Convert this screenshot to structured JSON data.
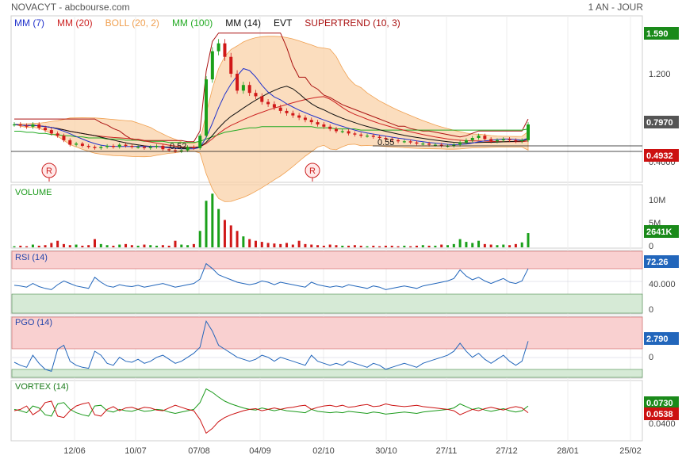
{
  "header": {
    "title": "NOVACYT - abcbourse.com",
    "period": "1 AN - JOUR"
  },
  "legend": [
    {
      "label": "MM (7)",
      "color": "#2233cc"
    },
    {
      "label": "MM (20)",
      "color": "#cc2222"
    },
    {
      "label": "BOLL (20, 2)",
      "color": "#f0a050"
    },
    {
      "label": "MM (100)",
      "color": "#22aa22"
    },
    {
      "label": "MM (14)",
      "color": "#111111"
    },
    {
      "label": "EVT",
      "color": "#111111"
    },
    {
      "label": "SUPERTREND (10, 3)",
      "color": "#aa1111"
    }
  ],
  "chart_data": {
    "type": "line",
    "x_ticks": [
      "12/06",
      "10/07",
      "07/08",
      "04/09",
      "02/10",
      "30/10",
      "27/11",
      "27/12",
      "28/01",
      "25/02"
    ],
    "price_panel": {
      "y_ticks": [
        "1.200",
        "0.4000"
      ],
      "price_badges": [
        {
          "value": "1.590",
          "color": "#1a8a1a"
        },
        {
          "value": "0.7970",
          "color": "#555555"
        },
        {
          "value": "0.4932",
          "color": "#cc1111"
        }
      ],
      "annotations": [
        "0.52",
        "0.55"
      ],
      "event_markers": [
        "R",
        "R"
      ],
      "close": [
        0.8,
        0.79,
        0.78,
        0.8,
        0.77,
        0.75,
        0.72,
        0.7,
        0.66,
        0.62,
        0.63,
        0.61,
        0.6,
        0.59,
        0.6,
        0.61,
        0.6,
        0.62,
        0.61,
        0.6,
        0.6,
        0.59,
        0.6,
        0.61,
        0.58,
        0.57,
        0.56,
        0.57,
        0.6,
        0.59,
        0.7,
        1.2,
        1.45,
        1.52,
        1.4,
        1.25,
        1.1,
        1.15,
        1.08,
        1.05,
        1.0,
        0.98,
        0.95,
        0.92,
        0.9,
        0.88,
        0.86,
        0.84,
        0.82,
        0.8,
        0.78,
        0.76,
        0.74,
        0.74,
        0.72,
        0.71,
        0.7,
        0.7,
        0.69,
        0.68,
        0.67,
        0.66,
        0.65,
        0.65,
        0.64,
        0.63,
        0.63,
        0.62,
        0.62,
        0.61,
        0.61,
        0.62,
        0.64,
        0.66,
        0.68,
        0.7,
        0.67,
        0.65,
        0.66,
        0.67,
        0.66,
        0.65,
        0.66,
        0.8
      ],
      "ma100": [
        0.74,
        0.74,
        0.73,
        0.73,
        0.72,
        0.72,
        0.71,
        0.71,
        0.7,
        0.7,
        0.69,
        0.69,
        0.68,
        0.68,
        0.68,
        0.67,
        0.67,
        0.67,
        0.66,
        0.66,
        0.66,
        0.65,
        0.65,
        0.65,
        0.65,
        0.64,
        0.64,
        0.64,
        0.64,
        0.64,
        0.65,
        0.67,
        0.69,
        0.71,
        0.73,
        0.74,
        0.75,
        0.76,
        0.77,
        0.77,
        0.78,
        0.78,
        0.78,
        0.78,
        0.78,
        0.78,
        0.78,
        0.78,
        0.78,
        0.77,
        0.77,
        0.77,
        0.76,
        0.76,
        0.76,
        0.76,
        0.75,
        0.75,
        0.75,
        0.75,
        0.75,
        0.75,
        0.75,
        0.75,
        0.75,
        0.75,
        0.75,
        0.75,
        0.75,
        0.75,
        0.75,
        0.75,
        0.75,
        0.75,
        0.75,
        0.75,
        0.75,
        0.75,
        0.75,
        0.75,
        0.75,
        0.75,
        0.75,
        0.76
      ],
      "ylim": [
        0.3,
        1.75
      ]
    },
    "volume_panel": {
      "label": "VOLUME",
      "y_ticks": [
        "10M",
        "5M",
        "0"
      ],
      "last_value": "2641K",
      "values": [
        0.2,
        0.3,
        0.2,
        0.5,
        0.3,
        0.4,
        0.8,
        1.2,
        0.6,
        0.4,
        0.5,
        0.3,
        0.4,
        1.5,
        0.6,
        0.4,
        0.3,
        0.5,
        0.6,
        0.4,
        0.3,
        0.5,
        0.4,
        0.3,
        0.4,
        0.3,
        1.2,
        0.5,
        0.4,
        0.6,
        3.0,
        8.5,
        9.8,
        7.0,
        5.0,
        4.0,
        3.0,
        2.0,
        1.5,
        1.2,
        1.0,
        0.8,
        0.7,
        0.6,
        0.8,
        0.5,
        1.2,
        0.6,
        0.5,
        0.4,
        0.3,
        0.5,
        0.4,
        0.3,
        0.3,
        0.4,
        0.3,
        0.2,
        0.3,
        0.2,
        0.3,
        0.3,
        0.2,
        0.3,
        0.2,
        0.3,
        0.4,
        0.3,
        0.3,
        0.5,
        0.4,
        0.6,
        1.5,
        1.0,
        0.8,
        1.2,
        0.6,
        0.5,
        0.4,
        0.5,
        0.4,
        0.6,
        0.9,
        2.6
      ],
      "ylim": [
        0,
        11
      ]
    },
    "rsi_panel": {
      "label": "RSI (14)",
      "y_ticks": [
        "40.000",
        "0"
      ],
      "last_value": "72.26",
      "values": [
        45,
        44,
        42,
        48,
        43,
        40,
        38,
        46,
        52,
        48,
        44,
        42,
        40,
        58,
        50,
        44,
        42,
        46,
        44,
        43,
        45,
        42,
        44,
        46,
        48,
        45,
        42,
        44,
        46,
        48,
        55,
        80,
        72,
        62,
        58,
        54,
        50,
        48,
        46,
        48,
        52,
        50,
        46,
        50,
        48,
        46,
        44,
        42,
        50,
        46,
        44,
        42,
        44,
        42,
        46,
        44,
        42,
        40,
        44,
        42,
        38,
        40,
        42,
        44,
        42,
        40,
        44,
        46,
        48,
        50,
        52,
        56,
        70,
        60,
        54,
        58,
        52,
        48,
        52,
        56,
        50,
        48,
        52,
        72
      ],
      "ylim": [
        0,
        100
      ]
    },
    "pgo_panel": {
      "label": "PGO (14)",
      "y_ticks": [
        "0"
      ],
      "last_value": "2.790",
      "values": [
        -0.5,
        -0.8,
        -1.0,
        0.2,
        -0.6,
        -1.2,
        -1.4,
        0.8,
        1.2,
        -0.4,
        -0.8,
        -1.0,
        -1.1,
        0.6,
        0.2,
        -0.6,
        -0.8,
        0.0,
        -0.4,
        -0.5,
        -0.2,
        -0.6,
        -0.4,
        0.0,
        0.2,
        -0.2,
        -0.6,
        -0.4,
        0.0,
        0.4,
        1.0,
        3.6,
        2.6,
        1.2,
        0.8,
        0.4,
        0.0,
        -0.2,
        -0.4,
        -0.2,
        0.2,
        0.0,
        -0.4,
        0.0,
        -0.2,
        -0.4,
        -0.6,
        -0.8,
        0.2,
        -0.4,
        -0.6,
        -0.8,
        -0.6,
        -0.8,
        -0.4,
        -0.6,
        -0.8,
        -1.0,
        -0.6,
        -0.8,
        -1.2,
        -1.0,
        -0.8,
        -0.6,
        -0.8,
        -1.0,
        -0.6,
        -0.4,
        -0.2,
        0.0,
        0.2,
        0.6,
        1.4,
        0.6,
        0.0,
        0.4,
        -0.2,
        -0.6,
        -0.2,
        0.2,
        -0.4,
        -0.8,
        -0.4,
        1.6
      ],
      "ylim": [
        -2,
        4
      ]
    },
    "vortex_panel": {
      "label": "VORTEX (14)",
      "y_ticks": [
        "0.0400"
      ],
      "badges": [
        {
          "value": "0.0730",
          "color": "#1a8a1a"
        },
        {
          "value": "0.0538",
          "color": "#cc1111"
        }
      ],
      "vi_plus": [
        1.0,
        0.98,
        0.95,
        1.05,
        1.02,
        0.92,
        0.9,
        1.08,
        1.1,
        1.0,
        0.95,
        0.92,
        0.9,
        1.05,
        1.06,
        0.98,
        0.96,
        1.0,
        0.98,
        0.97,
        1.0,
        0.97,
        0.98,
        1.0,
        0.99,
        0.96,
        0.94,
        0.96,
        0.98,
        1.0,
        1.1,
        1.3,
        1.25,
        1.18,
        1.12,
        1.08,
        1.05,
        1.02,
        1.0,
        0.99,
        1.02,
        1.0,
        0.98,
        1.0,
        0.98,
        0.97,
        0.96,
        0.95,
        1.0,
        0.97,
        0.96,
        0.95,
        0.96,
        0.95,
        0.97,
        0.96,
        0.95,
        0.94,
        0.96,
        0.95,
        0.93,
        0.94,
        0.95,
        0.96,
        0.95,
        0.94,
        0.96,
        0.97,
        0.98,
        0.99,
        1.0,
        1.02,
        1.08,
        1.04,
        1.0,
        1.02,
        0.99,
        0.97,
        0.99,
        1.01,
        0.98,
        0.96,
        0.98,
        1.05
      ],
      "vi_minus": [
        0.98,
        1.0,
        1.05,
        0.92,
        0.98,
        1.1,
        1.12,
        0.9,
        0.88,
        0.98,
        1.05,
        1.08,
        1.1,
        0.92,
        0.9,
        1.0,
        1.04,
        0.98,
        1.02,
        1.03,
        1.0,
        1.03,
        1.02,
        0.99,
        0.98,
        1.02,
        1.06,
        1.03,
        1.0,
        0.98,
        0.85,
        0.65,
        0.72,
        0.82,
        0.88,
        0.92,
        0.95,
        0.98,
        1.0,
        1.01,
        0.98,
        1.0,
        1.02,
        1.0,
        1.02,
        1.03,
        1.05,
        1.06,
        1.0,
        1.03,
        1.05,
        1.06,
        1.04,
        1.06,
        1.03,
        1.04,
        1.06,
        1.07,
        1.04,
        1.05,
        1.08,
        1.06,
        1.05,
        1.04,
        1.05,
        1.06,
        1.04,
        1.03,
        1.02,
        1.01,
        1.0,
        0.98,
        0.92,
        0.96,
        1.0,
        0.98,
        1.01,
        1.03,
        1.01,
        0.99,
        1.02,
        1.04,
        1.02,
        0.95
      ],
      "ylim": [
        0.55,
        1.4
      ]
    }
  }
}
